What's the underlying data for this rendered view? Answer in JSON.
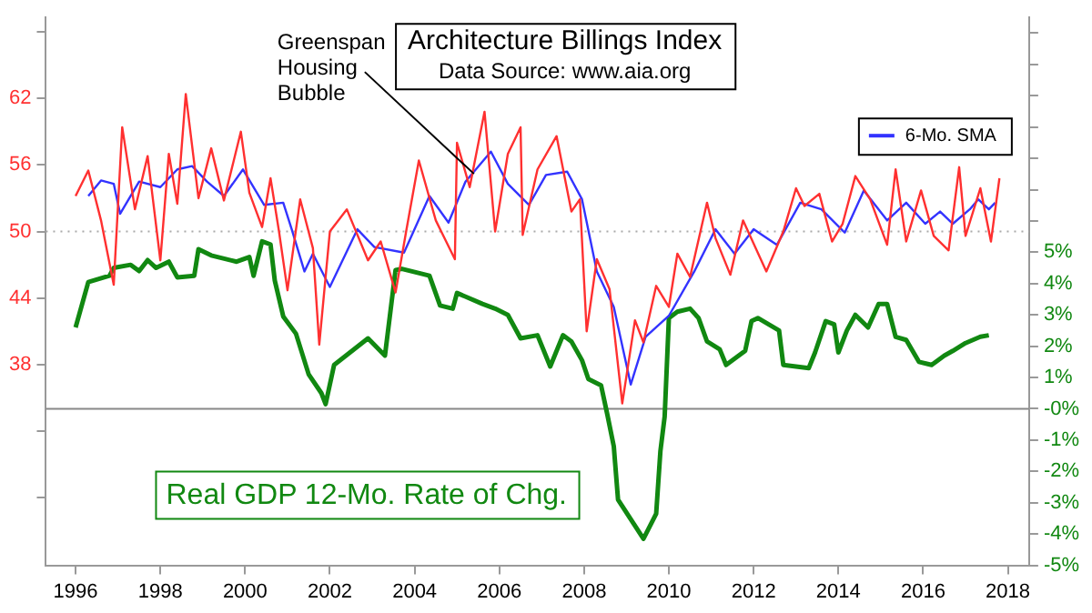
{
  "chart_data": {
    "type": "line",
    "title": "Architecture Billings Index",
    "subtitle": "Data Source: www.aia.org",
    "annotations": [
      {
        "text": "Greenspan Housing Bubble",
        "x": 2005.4,
        "y": 55.2
      }
    ],
    "xlim": [
      1995.3,
      2018.5
    ],
    "xticks": [
      1996,
      1998,
      2000,
      2002,
      2004,
      2006,
      2008,
      2010,
      2012,
      2014,
      2016,
      2018
    ],
    "ylim": [
      19.9,
      69.3
    ],
    "yticks": [
      {
        "value": 26,
        "label": null
      },
      {
        "value": 32,
        "label": null
      },
      38,
      44,
      50,
      56,
      62,
      {
        "value": 68,
        "label": null
      }
    ],
    "y2lim": [
      -5,
      12.5
    ],
    "y2ticks": [
      {
        "value": -5,
        "label": "-5%"
      },
      {
        "value": -4,
        "label": "-4%"
      },
      {
        "value": -3,
        "label": "-3%"
      },
      {
        "value": -2,
        "label": "-2%"
      },
      {
        "value": -1,
        "label": "-1%"
      },
      {
        "value": 0,
        "label": "-0%"
      },
      {
        "value": 1,
        "label": "1%"
      },
      {
        "value": 2,
        "label": "2%"
      },
      {
        "value": 3,
        "label": "3%"
      },
      {
        "value": 4,
        "label": "4%"
      },
      {
        "value": 5,
        "label": "5%"
      },
      {
        "value": 6,
        "label": null
      },
      {
        "value": 7,
        "label": null
      },
      {
        "value": 8,
        "label": null
      },
      {
        "value": 9,
        "label": null
      },
      {
        "value": 10,
        "label": null
      },
      {
        "value": 11,
        "label": null
      },
      {
        "value": 12,
        "label": null
      }
    ],
    "ref_lines": [
      {
        "axis": "y",
        "value": 50,
        "line_style": "dotted",
        "color": "#aaaaaa"
      },
      {
        "axis": "y2",
        "value": 0,
        "color": "#888888"
      }
    ],
    "grid": false,
    "legend": "top right",
    "series": [
      {
        "color": "#ff3030",
        "x": [
          1996.0,
          1996.3,
          1996.6,
          1996.9,
          1997.1,
          1997.4,
          1997.7,
          1998.0,
          1998.2,
          1998.4,
          1998.6,
          1998.9,
          1999.2,
          1999.5,
          1999.9,
          2000.1,
          2000.4,
          2000.6,
          2000.8,
          2001.0,
          2001.3,
          2001.6,
          2001.75,
          2002.0,
          2002.4,
          2002.9,
          2003.2,
          2003.55,
          2003.8,
          2004.1,
          2004.5,
          2004.95,
          2005.0,
          2005.3,
          2005.65,
          2005.9,
          2006.2,
          2006.5,
          2006.55,
          2006.9,
          2007.35,
          2007.7,
          2007.9,
          2008.06,
          2008.3,
          2008.6,
          2008.9,
          2009.2,
          2009.4,
          2009.7,
          2010.0,
          2010.2,
          2010.5,
          2010.9,
          2011.1,
          2011.45,
          2011.75,
          2012.3,
          2012.7,
          2013.0,
          2013.2,
          2013.55,
          2013.85,
          2014.1,
          2014.4,
          2014.75,
          2015.15,
          2015.35,
          2015.6,
          2015.95,
          2016.25,
          2016.6,
          2016.85,
          2017.0,
          2017.35,
          2017.6,
          2017.8
        ],
        "values": [
          53.2,
          55.5,
          51.0,
          45.2,
          59.4,
          52.0,
          56.8,
          47.4,
          57.0,
          52.5,
          62.4,
          53.0,
          57.5,
          52.8,
          59.0,
          53.5,
          50.4,
          54.8,
          50.0,
          44.7,
          52.9,
          48.5,
          39.8,
          50.0,
          52.0,
          47.4,
          49.1,
          44.5,
          50.0,
          56.4,
          51.0,
          47.5,
          58.0,
          54.0,
          60.8,
          50.0,
          57.0,
          59.4,
          49.7,
          55.6,
          58.6,
          51.8,
          52.9,
          41.0,
          47.5,
          44.8,
          34.5,
          42.0,
          40.0,
          45.1,
          43.2,
          48.0,
          45.9,
          52.6,
          49.4,
          46.1,
          51.0,
          46.4,
          50.0,
          53.9,
          52.3,
          53.4,
          49.1,
          50.7,
          55.0,
          52.9,
          48.8,
          55.6,
          49.1,
          53.7,
          49.6,
          48.3,
          55.8,
          49.6,
          53.9,
          49.1,
          54.8
        ]
      },
      {
        "name": "6-Mo. SMA",
        "color": "#3333ff",
        "x": [
          1996.3,
          1996.6,
          1996.9,
          1997.05,
          1997.5,
          1998.0,
          1998.4,
          1998.75,
          1999.1,
          1999.5,
          1999.95,
          2000.45,
          2000.9,
          2001.1,
          2001.4,
          2001.6,
          2002.0,
          2002.65,
          2003.05,
          2003.75,
          2004.35,
          2004.8,
          2005.2,
          2005.8,
          2006.2,
          2006.7,
          2007.1,
          2007.6,
          2007.95,
          2008.3,
          2008.7,
          2009.1,
          2009.45,
          2010.0,
          2010.6,
          2011.1,
          2011.55,
          2012.0,
          2012.55,
          2013.1,
          2013.6,
          2014.15,
          2014.6,
          2015.15,
          2015.6,
          2016.05,
          2016.4,
          2016.7,
          2017.1,
          2017.3,
          2017.55,
          2017.7
        ],
        "values": [
          53.2,
          54.6,
          54.3,
          51.6,
          54.5,
          54.0,
          55.6,
          55.9,
          54.5,
          53.2,
          55.6,
          52.4,
          52.6,
          50.2,
          46.4,
          48.0,
          45.0,
          50.2,
          48.6,
          48.1,
          53.2,
          50.8,
          54.5,
          57.2,
          54.3,
          52.4,
          55.1,
          55.4,
          52.9,
          46.4,
          43.2,
          36.2,
          40.5,
          42.4,
          46.4,
          50.2,
          48.0,
          50.2,
          48.8,
          52.6,
          52.0,
          49.9,
          53.7,
          51.0,
          52.6,
          50.7,
          51.8,
          50.7,
          52.0,
          52.9,
          52.0,
          52.6
        ]
      },
      {
        "name": "Real GDP 12-Mo. Rate of Chg.",
        "color": "#118811",
        "axis": "y2",
        "x": [
          1996.0,
          1996.3,
          1996.8,
          1996.9,
          1997.3,
          1997.5,
          1997.7,
          1997.9,
          1998.2,
          1998.4,
          1998.8,
          1998.9,
          1999.2,
          1999.8,
          2000.1,
          2000.2,
          2000.4,
          2000.6,
          2000.7,
          2000.9,
          2001.2,
          2001.5,
          2001.8,
          2001.9,
          2002.1,
          2002.9,
          2003.3,
          2003.55,
          2003.7,
          2004.35,
          2004.6,
          2004.9,
          2005.0,
          2005.6,
          2005.9,
          2006.2,
          2006.5,
          2006.9,
          2007.2,
          2007.5,
          2007.7,
          2007.95,
          2008.1,
          2008.4,
          2008.55,
          2008.7,
          2008.8,
          2009.4,
          2009.7,
          2009.8,
          2009.9,
          2010.0,
          2010.2,
          2010.5,
          2010.7,
          2010.9,
          2011.2,
          2011.35,
          2011.8,
          2011.95,
          2012.1,
          2012.6,
          2012.7,
          2013.3,
          2013.45,
          2013.7,
          2013.9,
          2014.0,
          2014.2,
          2014.4,
          2014.7,
          2014.95,
          2015.15,
          2015.35,
          2015.6,
          2015.9,
          2016.2,
          2016.5,
          2016.7,
          2017.0,
          2017.35,
          2017.55
        ],
        "values": [
          2.6,
          4.05,
          4.25,
          4.5,
          4.6,
          4.4,
          4.75,
          4.5,
          4.7,
          4.2,
          4.25,
          5.1,
          4.9,
          4.7,
          4.85,
          4.25,
          5.35,
          5.25,
          4.1,
          2.95,
          2.4,
          1.1,
          0.5,
          0.15,
          1.4,
          2.25,
          1.7,
          4.43,
          4.47,
          4.25,
          3.3,
          3.2,
          3.7,
          3.35,
          3.2,
          3.0,
          2.25,
          2.35,
          1.35,
          2.35,
          2.15,
          1.55,
          0.95,
          0.75,
          -0.2,
          -1.2,
          -2.9,
          -4.15,
          -3.35,
          -1.35,
          -0.25,
          2.9,
          3.1,
          3.2,
          2.9,
          2.15,
          1.9,
          1.4,
          1.85,
          2.8,
          2.9,
          2.5,
          1.4,
          1.3,
          1.8,
          2.8,
          2.7,
          1.8,
          2.5,
          3.0,
          2.6,
          3.35,
          3.35,
          2.3,
          2.2,
          1.5,
          1.4,
          1.7,
          1.85,
          2.1,
          2.3,
          2.35
        ]
      }
    ]
  }
}
